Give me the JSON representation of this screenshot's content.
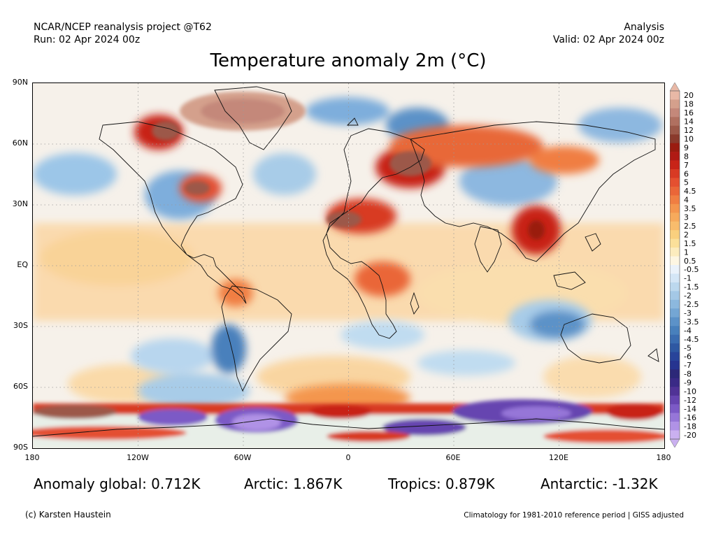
{
  "header": {
    "left_line1": "NCAR/NCEP reanalysis project @T62",
    "left_line2": "Run: 02 Apr 2024 00z",
    "right_line1": "Analysis",
    "right_line2": "Valid: 02 Apr 2024 00z"
  },
  "title": "Temperature anomaly 2m (°C)",
  "lat_labels": [
    "90N",
    "60N",
    "30N",
    "EQ",
    "30S",
    "60S",
    "90S"
  ],
  "lon_labels": [
    "180",
    "120W",
    "60W",
    "0",
    "60E",
    "120E",
    "180"
  ],
  "colorbar": {
    "levels": [
      "20",
      "18",
      "16",
      "14",
      "12",
      "10",
      "9",
      "8",
      "7",
      "6",
      "5",
      "4.5",
      "4",
      "3.5",
      "3",
      "2.5",
      "2",
      "1.5",
      "1",
      "0.5",
      "-0.5",
      "-1",
      "-1.5",
      "-2",
      "-2.5",
      "-3",
      "-3.5",
      "-4",
      "-4.5",
      "-5",
      "-6",
      "-7",
      "-8",
      "-9",
      "-10",
      "-12",
      "-14",
      "-16",
      "-18",
      "-20"
    ],
    "colors": [
      "#e8b8a6",
      "#d4a08c",
      "#c4887a",
      "#b07060",
      "#9c5848",
      "#8a3a2c",
      "#9a1c10",
      "#b01a14",
      "#c82418",
      "#d83a24",
      "#e45030",
      "#ea6638",
      "#f07e42",
      "#f4964e",
      "#f6aa5c",
      "#f8bc6c",
      "#fad07e",
      "#fbe09a",
      "#fcecbe",
      "#fdf6e2",
      "#eaf2fa",
      "#d4e6f6",
      "#bcd8ee",
      "#a4c8e6",
      "#8cb8de",
      "#74a6d4",
      "#5c92c8",
      "#4880bc",
      "#3a6cb0",
      "#2e58a2",
      "#28449a",
      "#263490",
      "#2c2878",
      "#3a2a86",
      "#503296",
      "#6644b0",
      "#7c5ac6",
      "#9676d8",
      "#b092e6",
      "#cab0f0"
    ]
  },
  "stats": {
    "global": "Anomaly global: 0.712K",
    "arctic": "Arctic: 1.867K",
    "tropics": "Tropics: 0.879K",
    "antarctic": "Antarctic: -1.32K"
  },
  "footer": {
    "credit": "(c) Karsten Haustein",
    "reference": "Climatology for 1981-2010 reference period | GISS adjusted"
  }
}
